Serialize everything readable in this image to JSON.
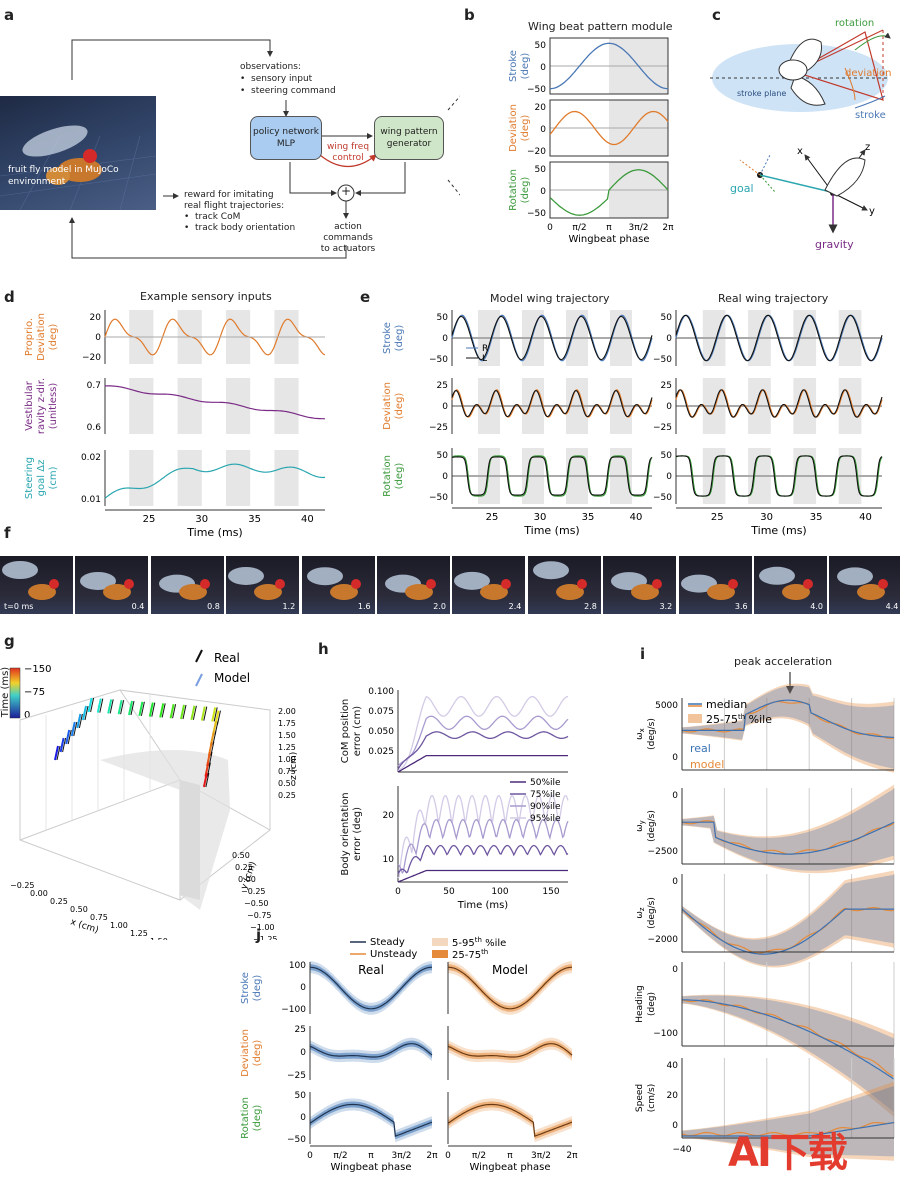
{
  "panels": {
    "a": {
      "letter": "a",
      "env_caption": "fruit fly model in MuJoCo environment",
      "observations_title": "observations:",
      "observations": [
        "sensory input",
        "steering command"
      ],
      "policy_box": "policy network",
      "policy_box_sub": "MLP",
      "wing_box": "wing pattern",
      "wing_box_sub": "generator",
      "wing_freq": "wing freq",
      "wing_freq_sub": "control",
      "plus": "+",
      "action": "action commands",
      "action_sub": "to actuators",
      "reward_title": "reward for imitating",
      "reward_title2": "real flight trajectories:",
      "reward_items": [
        "track CoM",
        "track body orientation"
      ]
    },
    "b": {
      "letter": "b",
      "title": "Wing beat pattern module",
      "ylabels": [
        [
          "Stroke",
          "(deg)"
        ],
        [
          "Deviation",
          "(deg)"
        ],
        [
          "Rotation",
          "(deg)"
        ]
      ],
      "yticks": [
        [
          "50",
          "0",
          "−50"
        ],
        [
          "20",
          "0",
          "−20"
        ],
        [
          "50",
          "0",
          "−50"
        ]
      ],
      "xticks": [
        "0",
        "π/2",
        "π",
        "3π/2",
        "2π"
      ],
      "xlabel": "Wingbeat phase"
    },
    "c": {
      "letter": "c",
      "labels": {
        "rotation": "rotation",
        "deviation": "deviation",
        "stroke": "stroke",
        "stroke_plane": "stroke plane",
        "x": "x",
        "z": "z",
        "y": "y",
        "goal": "goal",
        "gravity": "gravity"
      }
    },
    "d": {
      "letter": "d",
      "title": "Example sensory inputs",
      "ylabels": [
        [
          "Proprio.",
          "Deviation",
          "(deg)"
        ],
        [
          "Vestibular",
          "ravity z-dir.",
          "(unitless)"
        ],
        [
          "Steering",
          "goal  Δz",
          "(cm)"
        ]
      ],
      "yticks": [
        [
          "20",
          "0",
          "−20"
        ],
        [
          "0.7",
          "0.6"
        ],
        [
          "0.02",
          "0.01"
        ]
      ],
      "xticks": [
        "25",
        "30",
        "35",
        "40"
      ],
      "xlabel": "Time (ms)"
    },
    "e": {
      "letter": "e",
      "title_model": "Model wing trajectory",
      "title_real": "Real wing trajectory",
      "ylabels": [
        [
          "Stroke",
          "(deg)"
        ],
        [
          "Deviation",
          "(deg)"
        ],
        [
          "Rotation",
          "(deg)"
        ]
      ],
      "yticks": [
        [
          "50",
          "0",
          "−50"
        ],
        [
          "25",
          "0",
          "−25"
        ],
        [
          "50",
          "0",
          "−50"
        ]
      ],
      "xticks": [
        "25",
        "30",
        "35",
        "40"
      ],
      "xlabel": "Time (ms)",
      "legend": [
        "R",
        "L"
      ]
    },
    "f": {
      "letter": "f",
      "frames": [
        "t=0 ms",
        "0.4",
        "0.8",
        "1.2",
        "1.6",
        "2.0",
        "2.4",
        "2.8",
        "3.2",
        "3.6",
        "4.0",
        "4.4"
      ]
    },
    "g": {
      "letter": "g",
      "cbar_label": "Time (ms)",
      "cbar_ticks": [
        "−150",
        "−75",
        "0"
      ],
      "legend": [
        "Real",
        "Model"
      ],
      "xlabel": "x (cm)",
      "ylabel": "y (cm)",
      "zlabel": "z (cm)",
      "xticks": [
        "−0.25",
        "0.00",
        "0.25",
        "0.50",
        "0.75",
        "1.00",
        "1.25",
        "1.50",
        "1.75"
      ],
      "yticks": [
        "0.50",
        "0.25",
        "0.00",
        "−0.25",
        "−0.50",
        "−0.75",
        "−1.00",
        "−1.25"
      ],
      "zticks": [
        "2.00",
        "1.75",
        "1.50",
        "1.25",
        "1.00",
        "0.75",
        "0.50",
        "0.25"
      ]
    },
    "h": {
      "letter": "h",
      "ylabel_top": [
        "CoM position",
        "error (cm)"
      ],
      "ylabel_bot": [
        "Body orientation",
        "error (deg)"
      ],
      "yticks_top": [
        "0.100",
        "0.075",
        "0.050",
        "0.025"
      ],
      "yticks_bot": [
        "20",
        "10"
      ],
      "xticks": [
        "0",
        "50",
        "100",
        "150"
      ],
      "xlabel": "Time (ms)",
      "legend": [
        "50%ile",
        "75%ile",
        "90%ile",
        "95%ile"
      ]
    },
    "i": {
      "letter": "i",
      "annotation": "peak acceleration",
      "legend_median": "median",
      "legend_iqr": "25-75",
      "legend_iqr_sup": "th",
      "legend_iqr_suffix": " %ile",
      "label_real": "real",
      "label_model": "model",
      "ylabels": [
        [
          "ω",
          "x",
          "(deg/s)"
        ],
        [
          "ω",
          "y",
          "(deg/s)"
        ],
        [
          "ω",
          "z",
          "(deg/s)"
        ],
        [
          "Heading",
          "",
          "(deg)"
        ],
        [
          "Speed",
          "",
          "(cm/s)"
        ]
      ],
      "yticks": [
        [
          "5000",
          "0"
        ],
        [
          "0",
          "−2500"
        ],
        [
          "0",
          "−2000"
        ],
        [
          "0",
          "−100"
        ],
        [
          "40",
          "20",
          "0"
        ]
      ],
      "xtick": "−40"
    },
    "j": {
      "letter": "j",
      "legend_steady": "Steady",
      "legend_unsteady": "Unsteady",
      "legend_p95": "5-95",
      "legend_p95_sup": "th",
      "legend_p95_suffix": " %ile",
      "legend_p75": "25-75",
      "legend_p75_sup": "th",
      "title_real": "Real",
      "title_model": "Model",
      "ylabels": [
        [
          "Stroke",
          "(deg)"
        ],
        [
          "Deviation",
          "(deg)"
        ],
        [
          "Rotation",
          "(deg)"
        ]
      ],
      "yticks": [
        [
          "100",
          "0",
          "−100"
        ],
        [
          "25",
          "0",
          "−25"
        ],
        [
          "50",
          "0",
          "−50"
        ]
      ],
      "xticks": [
        "0",
        "π/2",
        "π",
        "3π/2",
        "2π"
      ],
      "xlabel": "Wingbeat phase"
    }
  },
  "watermark": "AI下载",
  "colors": {
    "stroke": "#4a78b5",
    "deviation": "#e07b2c",
    "rotation": "#3c9a3c",
    "vestibular": "#7a2b86",
    "steering": "#2aa6b0",
    "grey": "#e6e6e6",
    "real": "#3a72b5",
    "model": "#e58a3a"
  }
}
